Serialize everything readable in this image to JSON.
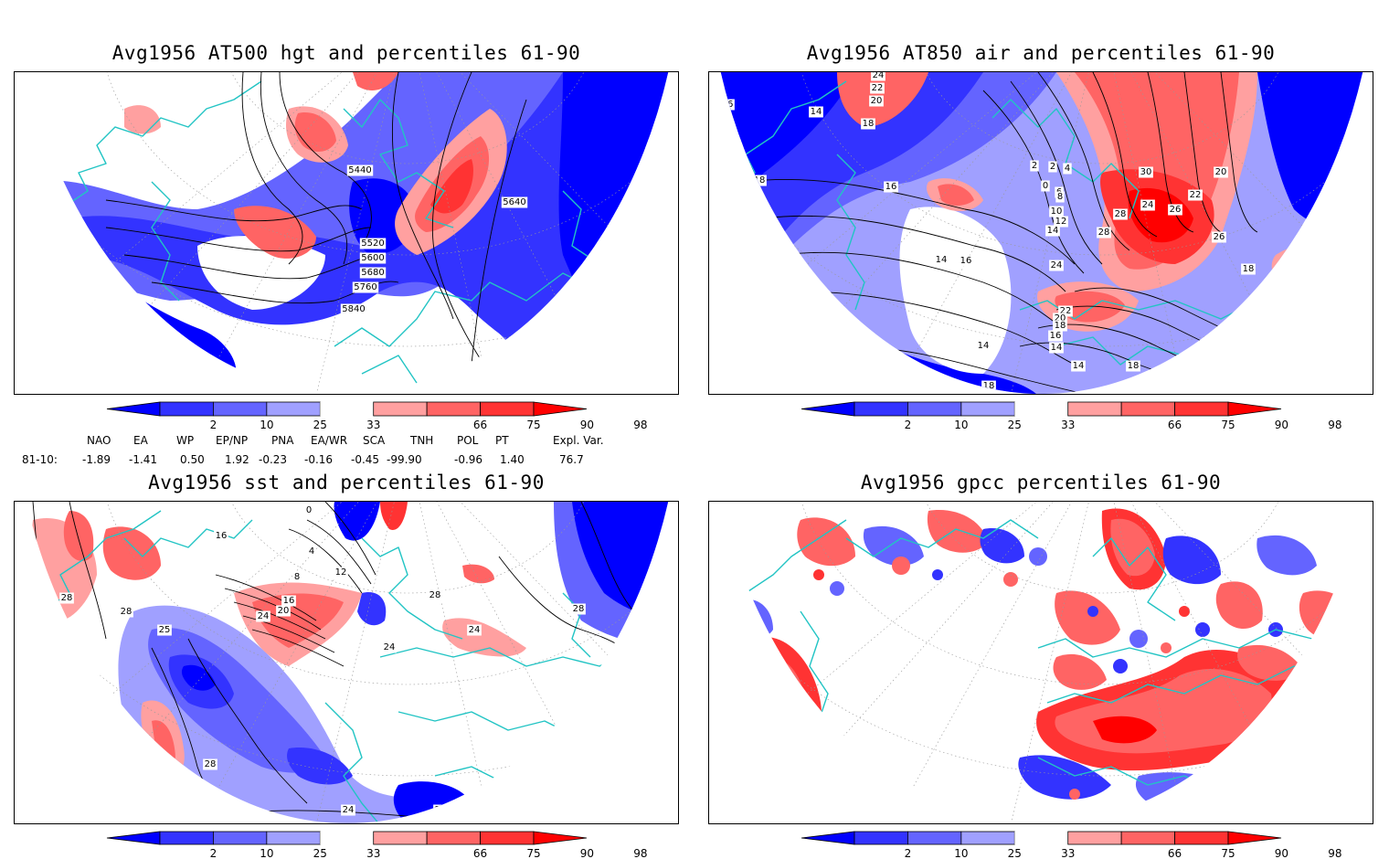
{
  "panels": [
    {
      "title": "Avg1956 AT500 hgt and percentiles 61-90",
      "contour_labels": [
        "5440",
        "5640",
        "5520",
        "5600",
        "5680",
        "5760",
        "5840",
        "5840"
      ]
    },
    {
      "title": "Avg1956 AT850 air and percentiles 61-90",
      "contour_labels": [
        "24",
        "22",
        "20",
        "18",
        "14",
        "16",
        "18",
        "16",
        "16",
        "14",
        "16",
        "2",
        "4",
        "0",
        "2",
        "6",
        "8",
        "10",
        "12",
        "14",
        "30",
        "20",
        "22",
        "26",
        "28",
        "24",
        "26",
        "28",
        "24",
        "22",
        "20",
        "18",
        "16",
        "14",
        "14",
        "14",
        "18",
        "18",
        "18"
      ]
    },
    {
      "title": "Avg1956 sst and percentiles 61-90",
      "contour_labels": [
        "24",
        "28",
        "28",
        "16",
        "0",
        "4",
        "8",
        "12",
        "16",
        "20",
        "24",
        "25",
        "24",
        "28",
        "24",
        "28",
        "24",
        "28",
        "24",
        "24"
      ]
    },
    {
      "title": "Avg1956 gpcc percentiles 61-90",
      "contour_labels": []
    }
  ],
  "colorbar": {
    "ticks": [
      "2",
      "10",
      "25",
      "33",
      "66",
      "75",
      "90",
      "98"
    ],
    "colors": [
      "#0000ff",
      "#3333ff",
      "#6464ff",
      "#a0a0ff",
      "#ffffff",
      "#ffa0a0",
      "#ff6464",
      "#ff3333",
      "#ff0000"
    ]
  },
  "indices": {
    "headers": [
      "NAO",
      "EA",
      "WP",
      "EP/NP",
      "PNA",
      "EA/WR",
      "SCA",
      "TNH",
      "POL",
      "PT",
      "Expl. Var."
    ],
    "row_label": "81-10:",
    "values": [
      "-1.89",
      "-1.41",
      "0.50",
      "1.92",
      "-0.23",
      "-0.16",
      "-0.45",
      "-99.90",
      "-0.96",
      "1.40",
      "76.7"
    ]
  }
}
